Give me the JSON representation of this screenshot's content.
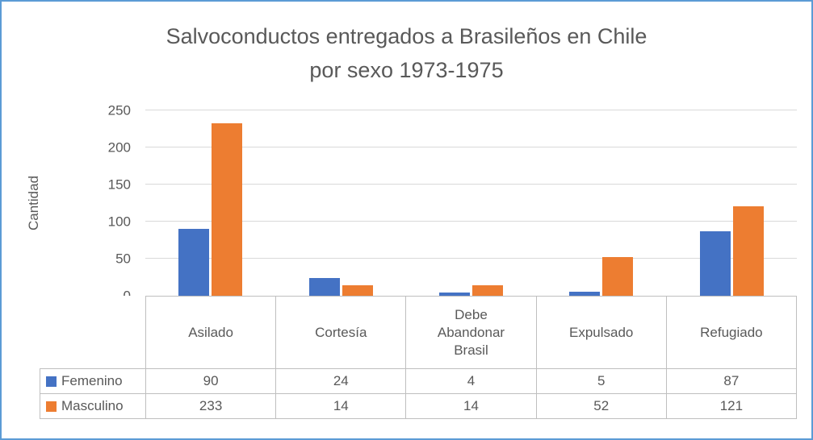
{
  "chart_data": {
    "type": "bar",
    "title": "Salvoconductos entregados a Brasileños en Chile por sexo 1973-1975",
    "title_lines": [
      "Salvoconductos entregados a Brasileños en Chile",
      "por sexo 1973-1975"
    ],
    "xlabel": "",
    "ylabel": "Cantidad",
    "ylim": [
      0,
      250
    ],
    "yticks": [
      0,
      50,
      100,
      150,
      200,
      250
    ],
    "grid": true,
    "legend_position": "data-table-left",
    "categories": [
      "Asilado",
      "Cortesía",
      "Debe Abandonar Brasil",
      "Expulsado",
      "Refugiado"
    ],
    "series": [
      {
        "name": "Femenino",
        "color": "#4472C4",
        "values": [
          90,
          24,
          4,
          5,
          87
        ]
      },
      {
        "name": "Masculino",
        "color": "#ED7D31",
        "values": [
          233,
          14,
          14,
          52,
          121
        ]
      }
    ]
  },
  "colors": {
    "frame_border": "#5B9BD5",
    "text": "#595959",
    "gridline": "#D9D9D9",
    "table_border": "#BFBFBF",
    "series_femenino": "#4472C4",
    "series_masculino": "#ED7D31"
  }
}
